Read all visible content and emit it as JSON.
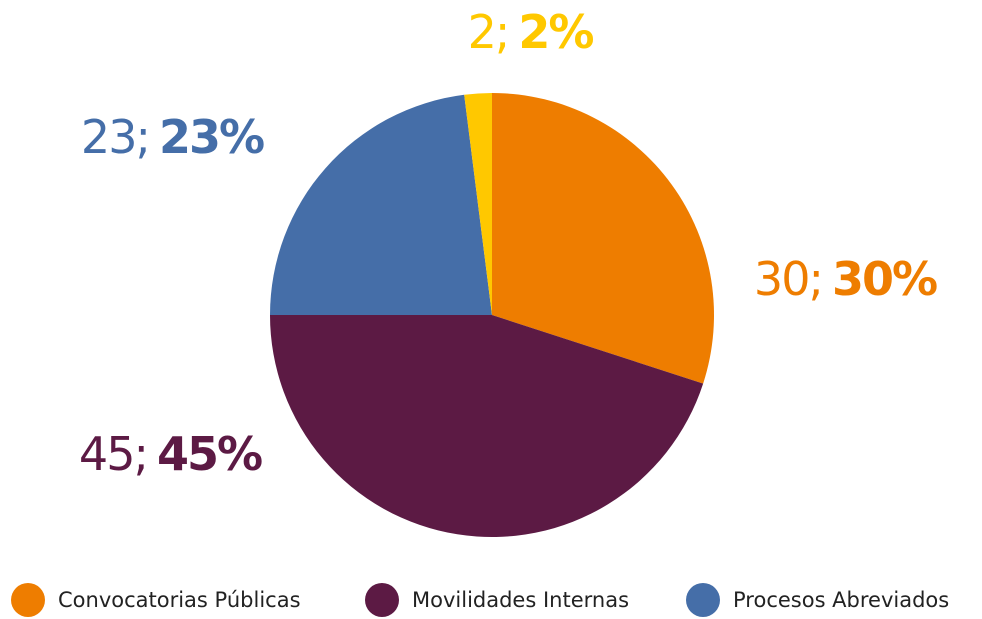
{
  "chart_data": {
    "type": "pie",
    "categories": [
      "Convocatorias Públicas",
      "Movilidades Internas",
      "Procesos Abreviados",
      null
    ],
    "values": [
      30,
      45,
      23,
      2
    ],
    "value_labels": [
      "30;",
      "45;",
      "23;",
      "2;"
    ],
    "percent_labels": [
      "30%",
      "45%",
      "23%",
      "2%"
    ],
    "colors": [
      "#ee7d00",
      "#5c1a44",
      "#456ea8",
      "#ffc800"
    ]
  }
}
